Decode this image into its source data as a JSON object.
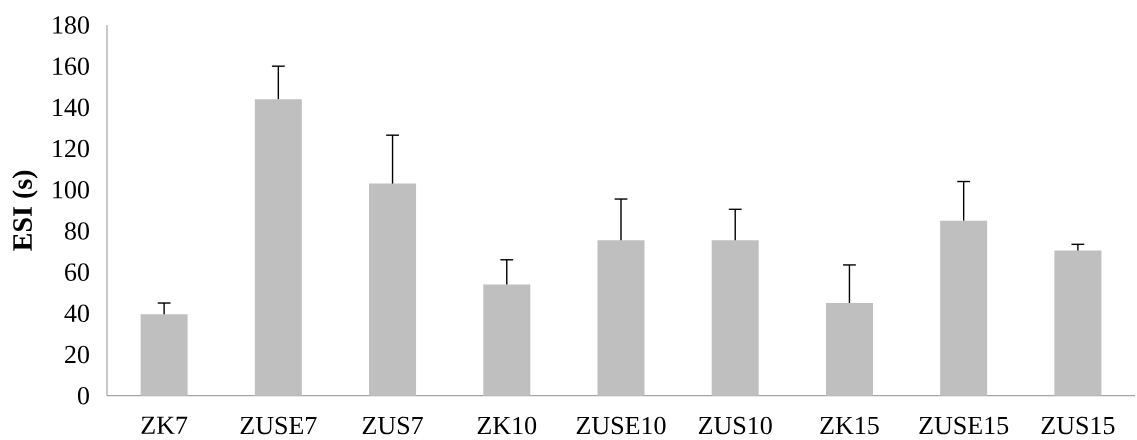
{
  "chart_data": {
    "type": "bar",
    "ylabel": "ESI (s)",
    "categories": [
      "ZK7",
      "ZUSE7",
      "ZUS7",
      "ZK10",
      "ZUSE10",
      "ZUS10",
      "ZK15",
      "ZUSE15",
      "ZUS15"
    ],
    "values": [
      39.5,
      144,
      103,
      54,
      75.5,
      75.5,
      45,
      85,
      70.5
    ],
    "errors": [
      [
        39.5,
        45
      ],
      [
        144,
        160
      ],
      [
        103,
        126.5
      ],
      [
        54,
        66
      ],
      [
        75.5,
        95.5
      ],
      [
        75.5,
        90.5
      ],
      [
        45,
        63.5
      ],
      [
        85,
        104
      ],
      [
        70.5,
        73.5
      ]
    ],
    "color": "#bfbfbf",
    "ylim": [
      0,
      180
    ],
    "yticks": [
      0,
      20,
      40,
      60,
      80,
      100,
      120,
      140,
      160,
      180
    ]
  }
}
